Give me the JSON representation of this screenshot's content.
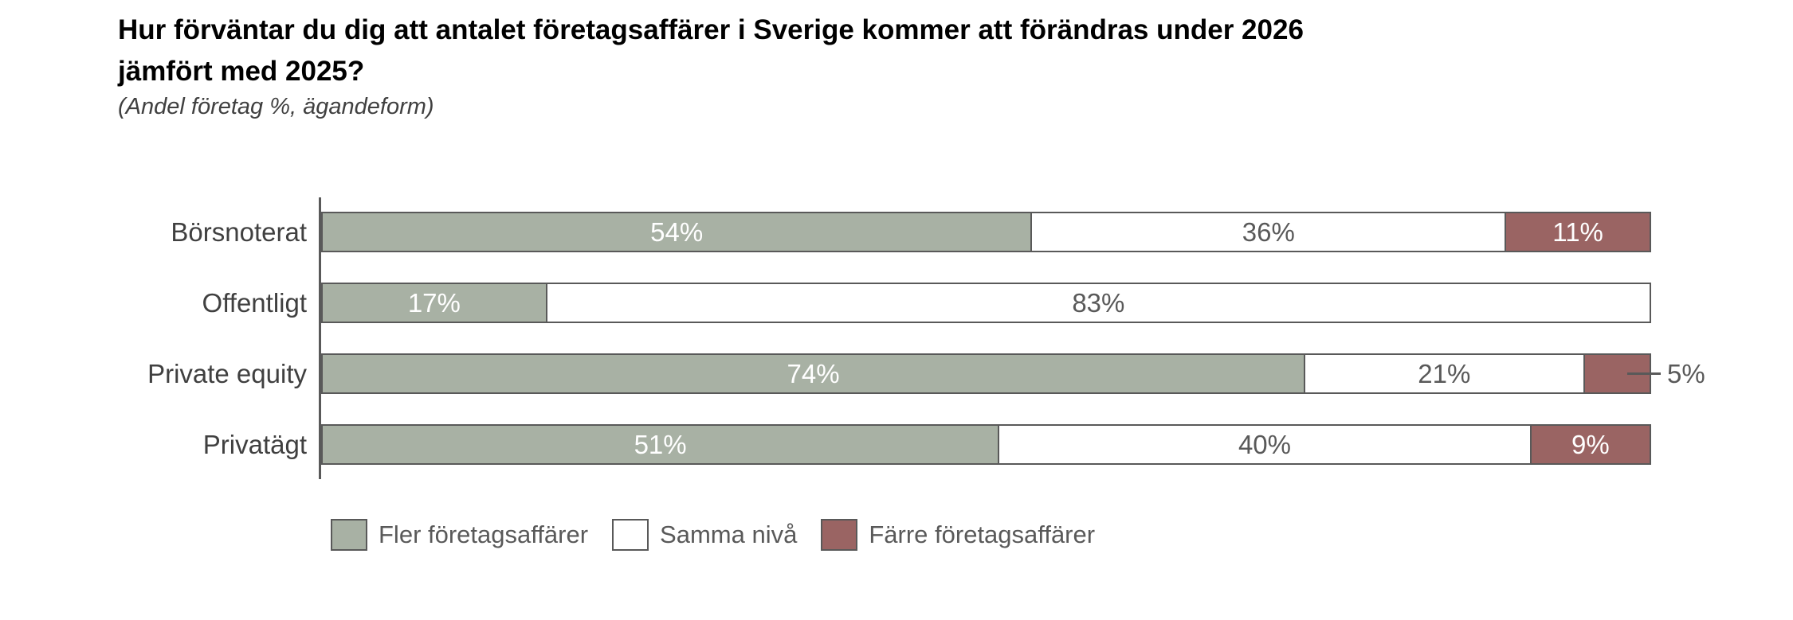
{
  "title": {
    "lines": [
      "Hur förväntar du dig att antalet företagsaffärer i Sverige kommer att förändras under 2026",
      "jämfört med 2025?"
    ]
  },
  "subtitle": "(Andel företag %, ägandeform)",
  "colors": {
    "more": "#a8b1a4",
    "same": "#ffffff",
    "less": "#9a6463",
    "border": "#595959",
    "axis": "#595959",
    "title_text": "#000000",
    "subtitle_text": "#404040",
    "category_text": "#404040",
    "value_text_on_color": "#ffffff",
    "value_text_on_white": "#595959",
    "legend_text": "#595959"
  },
  "legend": [
    {
      "key": "more",
      "label": "Fler företagsaffärer"
    },
    {
      "key": "same",
      "label": "Samma nivå"
    },
    {
      "key": "less",
      "label": "Färre företagsaffärer"
    }
  ],
  "chart_data": {
    "type": "bar",
    "orientation": "horizontal",
    "stacked": true,
    "unit": "%",
    "xlim": [
      0,
      100
    ],
    "grid": false,
    "legend_position": "bottom",
    "title": "Hur förväntar du dig att antalet företagsaffärer i Sverige kommer att förändras under 2026 jämfört med 2025?",
    "subtitle": "(Andel företag %, ägandeform)",
    "categories": [
      "Börsnoterat",
      "Offentligt",
      "Private equity",
      "Privatägt"
    ],
    "series": [
      {
        "name": "Fler företagsaffärer",
        "key": "more",
        "values": [
          54,
          17,
          74,
          51
        ]
      },
      {
        "name": "Samma nivå",
        "key": "same",
        "values": [
          36,
          83,
          21,
          40
        ]
      },
      {
        "name": "Färre företagsaffärer",
        "key": "less",
        "values": [
          11,
          0,
          5,
          9
        ]
      }
    ],
    "rows": [
      {
        "category": "Börsnoterat",
        "segments": [
          {
            "series": "more",
            "value": 54,
            "label": "54%"
          },
          {
            "series": "same",
            "value": 36,
            "label": "36%"
          },
          {
            "series": "less",
            "value": 11,
            "label": "11%"
          }
        ]
      },
      {
        "category": "Offentligt",
        "segments": [
          {
            "series": "more",
            "value": 17,
            "label": "17%"
          },
          {
            "series": "same",
            "value": 83,
            "label": "83%"
          }
        ]
      },
      {
        "category": "Private equity",
        "segments": [
          {
            "series": "more",
            "value": 74,
            "label": "74%"
          },
          {
            "series": "same",
            "value": 21,
            "label": "21%"
          },
          {
            "series": "less",
            "value": 5,
            "label": "5%",
            "label_outside": true
          }
        ]
      },
      {
        "category": "Privatägt",
        "segments": [
          {
            "series": "more",
            "value": 51,
            "label": "51%"
          },
          {
            "series": "same",
            "value": 40,
            "label": "40%"
          },
          {
            "series": "less",
            "value": 9,
            "label": "9%"
          }
        ]
      }
    ]
  }
}
